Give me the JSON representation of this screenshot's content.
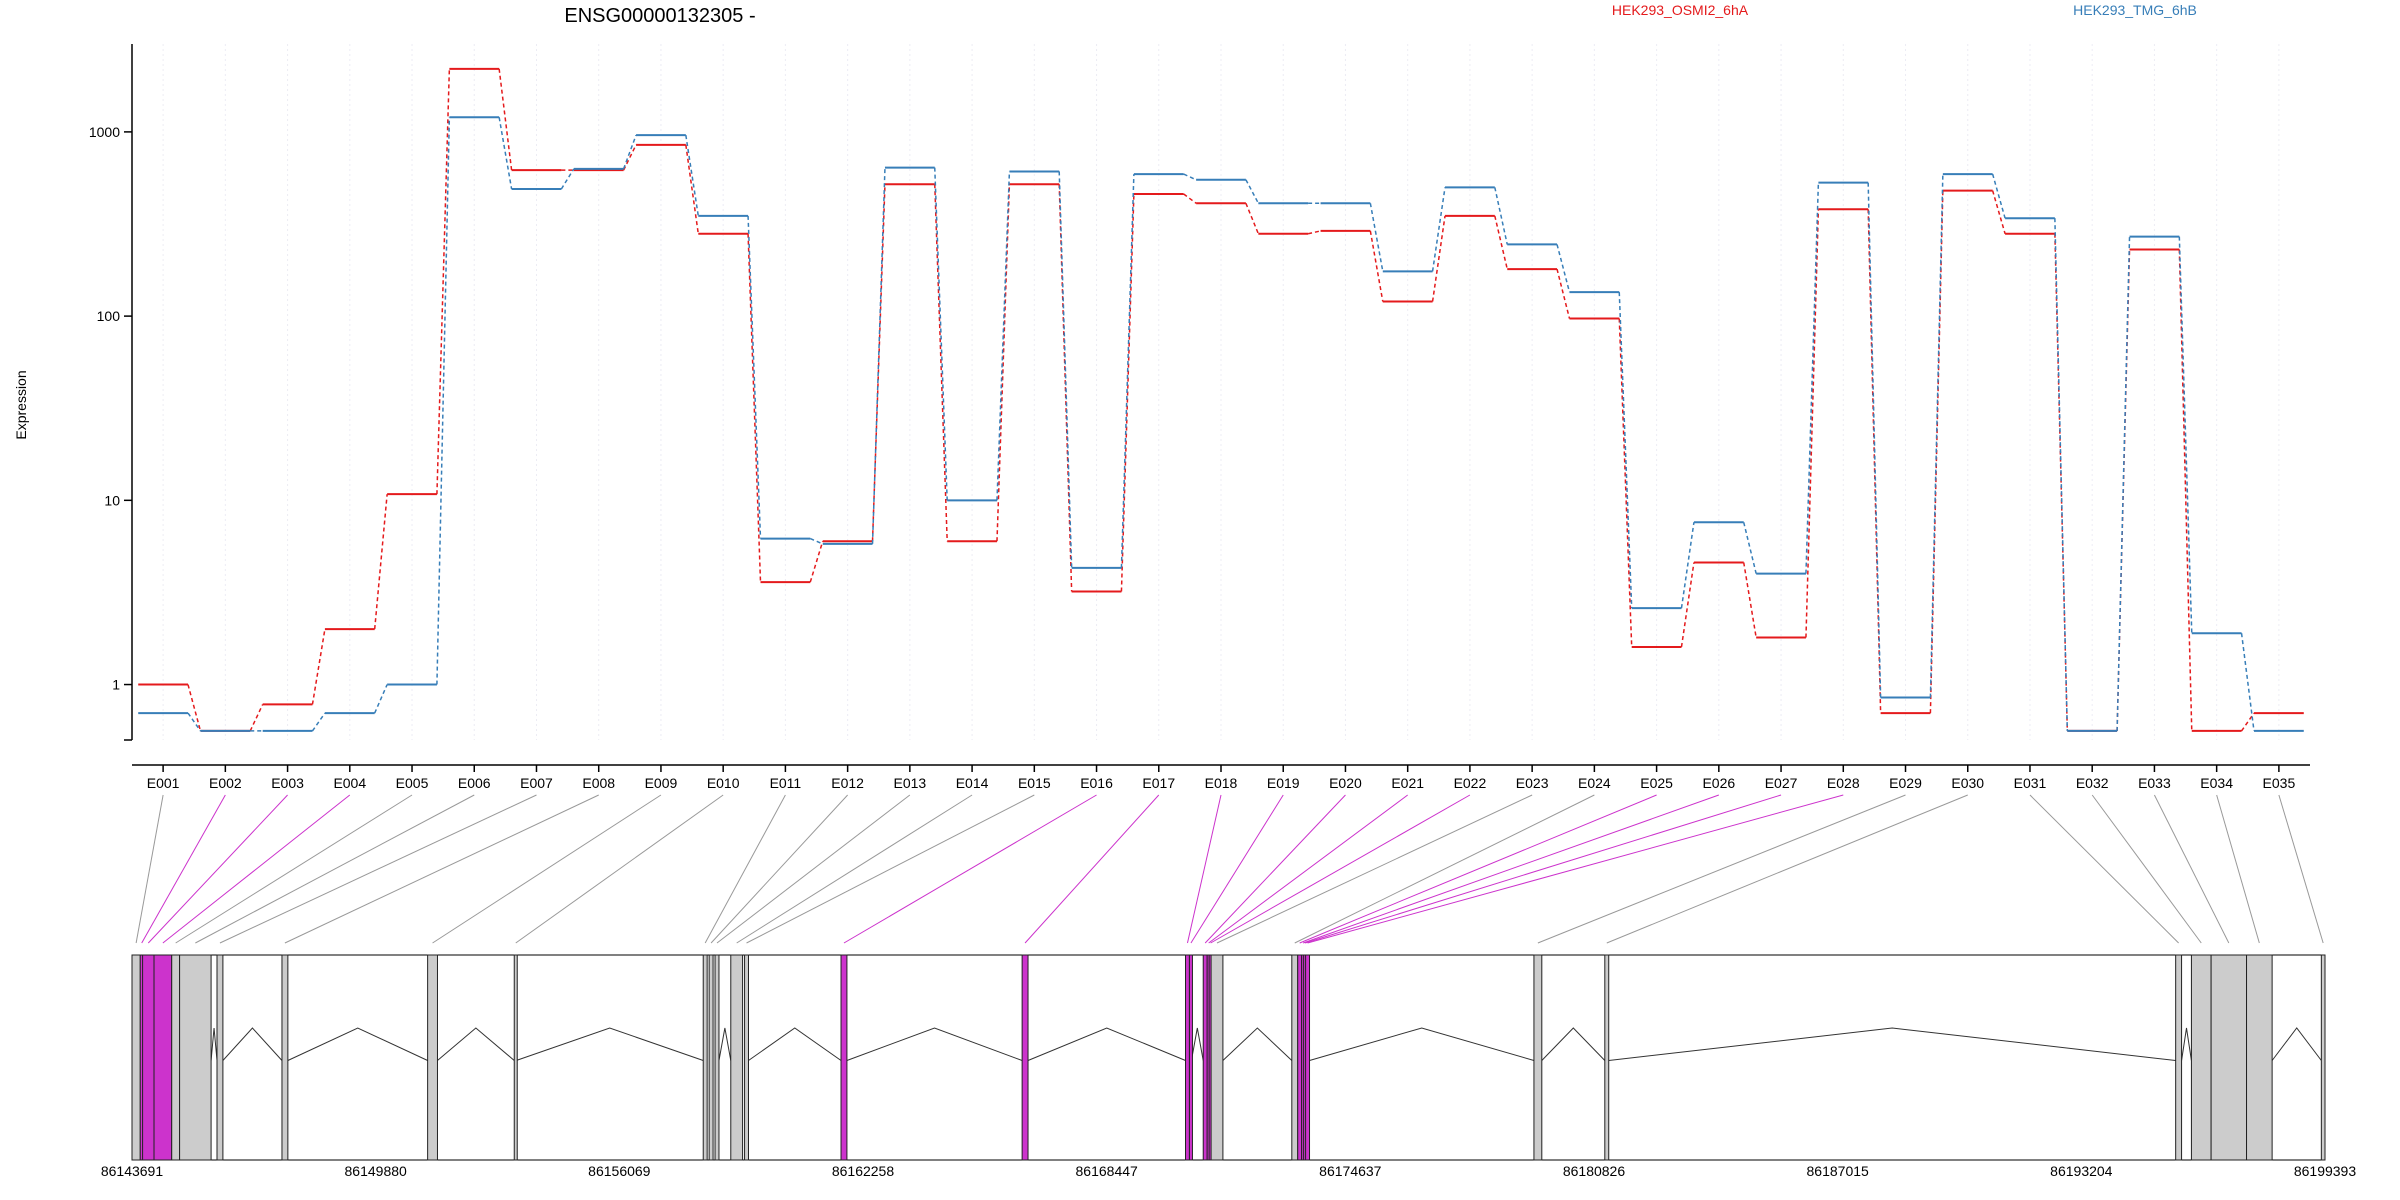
{
  "chart_data": {
    "type": "line",
    "title": "ENSG00000132305 -",
    "ylabel": "Expression",
    "yscale": "log",
    "ylim": [
      0.5,
      3000
    ],
    "yticks": [
      {
        "value": 1,
        "label": "1"
      },
      {
        "value": 10,
        "label": "10"
      },
      {
        "value": 100,
        "label": "100"
      },
      {
        "value": 1000,
        "label": "1000"
      }
    ],
    "categories": [
      "E001",
      "E002",
      "E003",
      "E004",
      "E005",
      "E006",
      "E007",
      "E008",
      "E009",
      "E010",
      "E011",
      "E012",
      "E013",
      "E014",
      "E015",
      "E016",
      "E017",
      "E018",
      "E019",
      "E020",
      "E021",
      "E022",
      "E023",
      "E024",
      "E025",
      "E026",
      "E027",
      "E028",
      "E029",
      "E030",
      "E031",
      "E032",
      "E033",
      "E034",
      "E035"
    ],
    "series": [
      {
        "name": "HEK293_OSMI2_6hA",
        "color": "#e41a1c",
        "values": [
          1.0,
          0.56,
          0.78,
          2.0,
          10.8,
          2200,
          620,
          620,
          850,
          280,
          3.6,
          6.0,
          520,
          6.0,
          520,
          3.2,
          460,
          410,
          280,
          290,
          120,
          350,
          180,
          97,
          1.6,
          4.6,
          1.8,
          380,
          0.7,
          480,
          280,
          0.56,
          230,
          0.56,
          0.7
        ]
      },
      {
        "name": "HEK293_TMG_6hB",
        "color": "#377eb8",
        "values": [
          0.7,
          0.56,
          0.56,
          0.7,
          1.0,
          1200,
          490,
          630,
          960,
          350,
          6.2,
          5.8,
          640,
          10.0,
          610,
          4.3,
          590,
          550,
          410,
          410,
          175,
          500,
          245,
          135,
          2.6,
          7.6,
          4.0,
          530,
          0.85,
          590,
          340,
          0.56,
          270,
          1.9,
          0.56
        ]
      }
    ],
    "gene_model": {
      "coordinate_ticks": [
        "86143691",
        "86149880",
        "86156069",
        "86162258",
        "86168447",
        "86174637",
        "86180826",
        "86187015",
        "86193204",
        "86199393"
      ],
      "range": [
        86143691,
        86199393
      ],
      "highlight_color": "#cc33cc",
      "normal_color": "#cccccc",
      "exons": [
        {
          "id": "E001",
          "start": 86143691,
          "end": 86143900,
          "highlight": false
        },
        {
          "id": "E002",
          "start": 86143900,
          "end": 86143960,
          "highlight": true
        },
        {
          "id": "E003",
          "start": 86143960,
          "end": 86144250,
          "highlight": true
        },
        {
          "id": "E004",
          "start": 86144250,
          "end": 86144700,
          "highlight": true
        },
        {
          "id": "E005",
          "start": 86144700,
          "end": 86144900,
          "highlight": false
        },
        {
          "id": "E006",
          "start": 86144900,
          "end": 86145700,
          "highlight": false
        },
        {
          "id": "E007",
          "start": 86145850,
          "end": 86146000,
          "highlight": false
        },
        {
          "id": "E008",
          "start": 86147500,
          "end": 86147650,
          "highlight": false
        },
        {
          "id": "E009",
          "start": 86151200,
          "end": 86151450,
          "highlight": false
        },
        {
          "id": "E010",
          "start": 86153400,
          "end": 86153450,
          "highlight": false
        },
        {
          "id": "E011",
          "start": 86158200,
          "end": 86158300,
          "highlight": false
        },
        {
          "id": "E012",
          "start": 86158350,
          "end": 86158450,
          "highlight": false
        },
        {
          "id": "E013",
          "start": 86158500,
          "end": 86158600,
          "highlight": false
        },
        {
          "id": "E014",
          "start": 86158900,
          "end": 86159200,
          "highlight": false
        },
        {
          "id": "E015",
          "start": 86159250,
          "end": 86159350,
          "highlight": false
        },
        {
          "id": "E016",
          "start": 86161700,
          "end": 86161850,
          "highlight": true
        },
        {
          "id": "E017",
          "start": 86166300,
          "end": 86166450,
          "highlight": true
        },
        {
          "id": "E018",
          "start": 86170450,
          "end": 86170550,
          "highlight": true
        },
        {
          "id": "E019",
          "start": 86170550,
          "end": 86170600,
          "highlight": true
        },
        {
          "id": "E020",
          "start": 86170900,
          "end": 86171000,
          "highlight": true
        },
        {
          "id": "E021",
          "start": 86171000,
          "end": 86171050,
          "highlight": true
        },
        {
          "id": "E022",
          "start": 86171050,
          "end": 86171100,
          "highlight": true
        },
        {
          "id": "E023",
          "start": 86171100,
          "end": 86171400,
          "highlight": false
        },
        {
          "id": "E024",
          "start": 86173150,
          "end": 86173300,
          "highlight": false
        },
        {
          "id": "E025",
          "start": 86173300,
          "end": 86173400,
          "highlight": true
        },
        {
          "id": "E026",
          "start": 86173400,
          "end": 86173450,
          "highlight": true
        },
        {
          "id": "E027",
          "start": 86173450,
          "end": 86173500,
          "highlight": true
        },
        {
          "id": "E028",
          "start": 86173500,
          "end": 86173600,
          "highlight": true
        },
        {
          "id": "E029",
          "start": 86179300,
          "end": 86179500,
          "highlight": false
        },
        {
          "id": "E030",
          "start": 86181100,
          "end": 86181200,
          "highlight": false
        },
        {
          "id": "E031",
          "start": 86195600,
          "end": 86195750,
          "highlight": false
        },
        {
          "id": "E032",
          "start": 86196000,
          "end": 86196500,
          "highlight": false
        },
        {
          "id": "E033",
          "start": 86196500,
          "end": 86197400,
          "highlight": false
        },
        {
          "id": "E034",
          "start": 86197400,
          "end": 86198050,
          "highlight": false
        },
        {
          "id": "E035",
          "start": 86199300,
          "end": 86199393,
          "highlight": false
        }
      ],
      "feature_starts": [
        86143691,
        86145850,
        86147500,
        86151200,
        86153400,
        86158200,
        86158900,
        86161700,
        86166300,
        86170450,
        86170900,
        86173150,
        86179300,
        86181100,
        86195600,
        86196000,
        86199300
      ]
    }
  }
}
